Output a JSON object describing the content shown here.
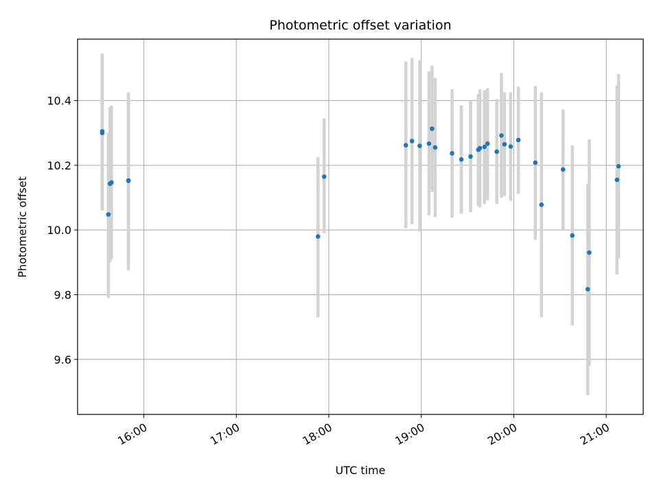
{
  "chart_data": {
    "type": "scatter",
    "title": "Photometric offset variation",
    "xlabel": "UTC time",
    "ylabel": "Photometric offset",
    "grid": true,
    "x_axis": {
      "kind": "time",
      "range": [
        "15:17",
        "21:24"
      ],
      "ticks": [
        "16:00",
        "17:00",
        "18:00",
        "19:00",
        "20:00",
        "21:00"
      ]
    },
    "y_axis": {
      "range": [
        9.43,
        10.59
      ],
      "ticks": [
        9.6,
        9.8,
        10.0,
        10.2,
        10.4
      ],
      "tick_labels": [
        "9.6",
        "9.8",
        "10.0",
        "10.2",
        "10.4"
      ]
    },
    "marker_color": "#1f77b4",
    "errorbar_color": "#d3d3d3",
    "points": [
      {
        "x": "15:33",
        "y": 10.3,
        "ylow": 10.06,
        "yhigh": 10.545
      },
      {
        "x": "15:33",
        "y": 10.305,
        "ylow": 10.06,
        "yhigh": 10.545
      },
      {
        "x": "15:37",
        "y": 10.048,
        "ylow": 9.79,
        "yhigh": 10.3
      },
      {
        "x": "15:38",
        "y": 10.143,
        "ylow": 9.9,
        "yhigh": 10.38
      },
      {
        "x": "15:39",
        "y": 10.147,
        "ylow": 9.91,
        "yhigh": 10.385
      },
      {
        "x": "15:50",
        "y": 10.152,
        "ylow": 9.875,
        "yhigh": 10.425
      },
      {
        "x": "15:50",
        "y": 10.153,
        "ylow": 9.89,
        "yhigh": 10.415
      },
      {
        "x": "17:53",
        "y": 9.98,
        "ylow": 9.73,
        "yhigh": 10.225
      },
      {
        "x": "17:57",
        "y": 10.165,
        "ylow": 9.99,
        "yhigh": 10.345
      },
      {
        "x": "18:50",
        "y": 10.262,
        "ylow": 10.005,
        "yhigh": 10.52
      },
      {
        "x": "18:54",
        "y": 10.275,
        "ylow": 10.018,
        "yhigh": 10.532
      },
      {
        "x": "18:59",
        "y": 10.26,
        "ylow": 9.995,
        "yhigh": 10.525
      },
      {
        "x": "19:05",
        "y": 10.267,
        "ylow": 10.045,
        "yhigh": 10.49
      },
      {
        "x": "19:07",
        "y": 10.313,
        "ylow": 10.118,
        "yhigh": 10.508
      },
      {
        "x": "19:09",
        "y": 10.255,
        "ylow": 10.04,
        "yhigh": 10.47
      },
      {
        "x": "19:20",
        "y": 10.237,
        "ylow": 10.038,
        "yhigh": 10.435
      },
      {
        "x": "19:26",
        "y": 10.218,
        "ylow": 10.05,
        "yhigh": 10.385
      },
      {
        "x": "19:32",
        "y": 10.227,
        "ylow": 10.055,
        "yhigh": 10.4
      },
      {
        "x": "19:37",
        "y": 10.248,
        "ylow": 10.075,
        "yhigh": 10.42
      },
      {
        "x": "19:38",
        "y": 10.253,
        "ylow": 10.07,
        "yhigh": 10.435
      },
      {
        "x": "19:41",
        "y": 10.257,
        "ylow": 10.08,
        "yhigh": 10.432
      },
      {
        "x": "19:43",
        "y": 10.267,
        "ylow": 10.092,
        "yhigh": 10.438
      },
      {
        "x": "19:49",
        "y": 10.242,
        "ylow": 10.08,
        "yhigh": 10.405
      },
      {
        "x": "19:52",
        "y": 10.292,
        "ylow": 10.1,
        "yhigh": 10.485
      },
      {
        "x": "19:54",
        "y": 10.265,
        "ylow": 10.105,
        "yhigh": 10.425
      },
      {
        "x": "19:58",
        "y": 10.258,
        "ylow": 10.09,
        "yhigh": 10.425
      },
      {
        "x": "20:03",
        "y": 10.278,
        "ylow": 10.112,
        "yhigh": 10.443
      },
      {
        "x": "20:14",
        "y": 10.208,
        "ylow": 9.97,
        "yhigh": 10.445
      },
      {
        "x": "20:18",
        "y": 10.078,
        "ylow": 9.73,
        "yhigh": 10.425
      },
      {
        "x": "20:32",
        "y": 10.187,
        "ylow": 10.0,
        "yhigh": 10.373
      },
      {
        "x": "20:38",
        "y": 9.983,
        "ylow": 9.705,
        "yhigh": 10.262
      },
      {
        "x": "20:48",
        "y": 9.817,
        "ylow": 9.49,
        "yhigh": 10.143
      },
      {
        "x": "20:49",
        "y": 9.93,
        "ylow": 9.58,
        "yhigh": 10.28
      },
      {
        "x": "21:07",
        "y": 10.155,
        "ylow": 9.863,
        "yhigh": 10.447
      },
      {
        "x": "21:08",
        "y": 10.197,
        "ylow": 9.912,
        "yhigh": 10.482
      }
    ]
  }
}
